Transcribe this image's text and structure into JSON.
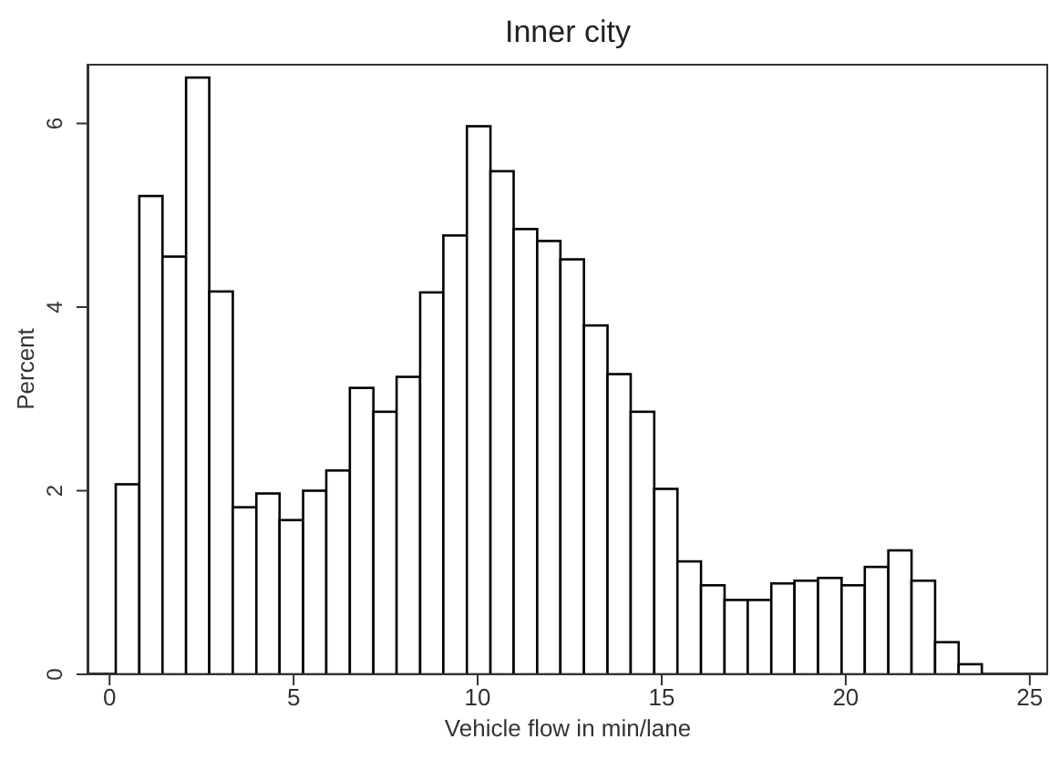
{
  "chart_data": {
    "type": "histogram",
    "title": "Inner city",
    "xlabel": "Vehicle flow in min/lane",
    "ylabel": "Percent",
    "bins": [
      0.15,
      0.79,
      1.42,
      2.06,
      2.69,
      3.33,
      3.97,
      4.6,
      5.24,
      5.87,
      6.51,
      7.15,
      7.78,
      8.42,
      9.05,
      9.69,
      10.33,
      10.96,
      11.6,
      12.23,
      12.87,
      13.51,
      14.14,
      14.78,
      15.41,
      16.05,
      16.69,
      17.32,
      17.96,
      18.59,
      19.23,
      19.87,
      20.5,
      21.14,
      21.77,
      22.41,
      23.05,
      23.68
    ],
    "values": [
      2.07,
      5.21,
      4.55,
      6.5,
      4.17,
      1.82,
      1.97,
      1.68,
      2.0,
      2.22,
      3.12,
      2.86,
      3.24,
      4.16,
      4.78,
      5.97,
      5.48,
      4.85,
      4.72,
      4.52,
      3.8,
      3.27,
      2.86,
      2.02,
      1.23,
      0.97,
      0.81,
      0.81,
      0.99,
      1.02,
      1.05,
      0.97,
      1.17,
      1.35,
      1.02,
      0.35,
      0.11
    ],
    "color": "#ffffff",
    "xlim": [
      -0.6,
      25.5
    ],
    "ylim": [
      0,
      6.65
    ],
    "xticks": [
      0,
      5,
      10,
      15,
      20,
      25
    ],
    "yticks": [
      0,
      2,
      4,
      6
    ],
    "grid": false
  }
}
